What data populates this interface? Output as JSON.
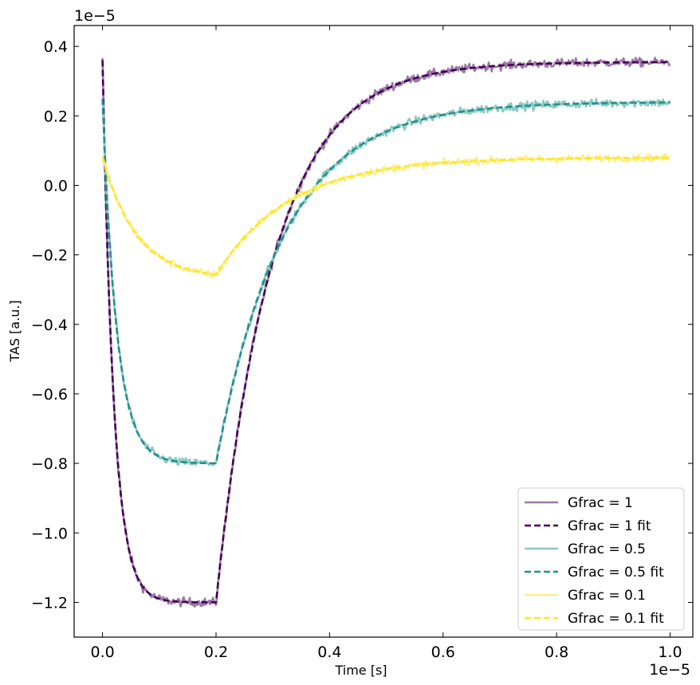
{
  "chart_data": {
    "type": "line",
    "xlabel": "Time [s]",
    "ylabel": "TAS [a.u.]",
    "x_offset_text": "1e−5",
    "y_offset_text": "1e−5",
    "xlim": [
      -0.05,
      1.04
    ],
    "ylim": [
      -1.3,
      0.46
    ],
    "x_ticks": [
      0.0,
      0.2,
      0.4,
      0.6,
      0.8,
      1.0
    ],
    "x_tick_labels": [
      "0.0",
      "0.2",
      "0.4",
      "0.6",
      "0.8",
      "1.0"
    ],
    "y_ticks": [
      0.4,
      0.2,
      0.0,
      -0.2,
      -0.4,
      -0.6,
      -0.8,
      -1.0,
      -1.2
    ],
    "y_tick_labels": [
      "0.4",
      "0.2",
      "0.0",
      "−0.2",
      "−0.4",
      "−0.6",
      "−0.8",
      "−1.0",
      "−1.2"
    ],
    "grid": false,
    "legend_position": "bottom-right",
    "series": [
      {
        "name": "Gfrac = 1",
        "style": "solid",
        "color": "#9b7aa5",
        "start": 0.36,
        "min": -1.2,
        "tau1": 0.02,
        "end": 0.355,
        "tau2": 0.1,
        "noise": 0.012
      },
      {
        "name": "Gfrac = 1 fit",
        "style": "dashed",
        "color": "#440154",
        "start": 0.36,
        "min": -1.2,
        "tau1": 0.02,
        "end": 0.355,
        "tau2": 0.1,
        "noise": 0
      },
      {
        "name": "Gfrac = 0.5",
        "style": "solid",
        "color": "#8ec9c3",
        "start": 0.25,
        "min": -0.8,
        "tau1": 0.025,
        "end": 0.24,
        "tau2": 0.12,
        "noise": 0.012
      },
      {
        "name": "Gfrac = 0.5 fit",
        "style": "dashed",
        "color": "#21918c",
        "start": 0.25,
        "min": -0.8,
        "tau1": 0.025,
        "end": 0.24,
        "tau2": 0.12,
        "noise": 0
      },
      {
        "name": "Gfrac = 0.1",
        "style": "solid",
        "color": "#fcee8a",
        "start": 0.08,
        "min": -0.27,
        "tau1": 0.06,
        "end": 0.08,
        "tau2": 0.13,
        "noise": 0.01
      },
      {
        "name": "Gfrac = 0.1 fit",
        "style": "dashed",
        "color": "#fde725",
        "start": 0.08,
        "min": -0.27,
        "tau1": 0.06,
        "end": 0.08,
        "tau2": 0.13,
        "noise": 0
      }
    ],
    "switch_time": 0.2,
    "t_end": 1.0
  }
}
